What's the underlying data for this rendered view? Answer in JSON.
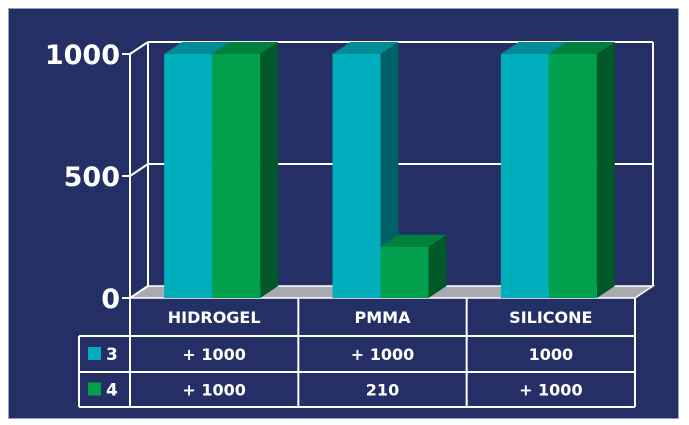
{
  "chart_data": {
    "type": "bar",
    "categories": [
      "HIDROGEL",
      "PMMA",
      "SILICONE"
    ],
    "series": [
      {
        "name": "3",
        "values": [
          1000,
          1000,
          1000
        ],
        "color": "#00aebc",
        "table_labels": [
          "+ 1000",
          "+ 1000",
          "1000"
        ]
      },
      {
        "name": "4",
        "values": [
          1000,
          210,
          1000
        ],
        "color": "#00a04c",
        "table_labels": [
          "+ 1000",
          "210",
          "+ 1000"
        ]
      }
    ],
    "yticks": [
      "0",
      "500",
      "1000"
    ],
    "ylim": [
      0,
      1000
    ],
    "grid": true,
    "background": "#242f66",
    "legend": "data-table"
  }
}
